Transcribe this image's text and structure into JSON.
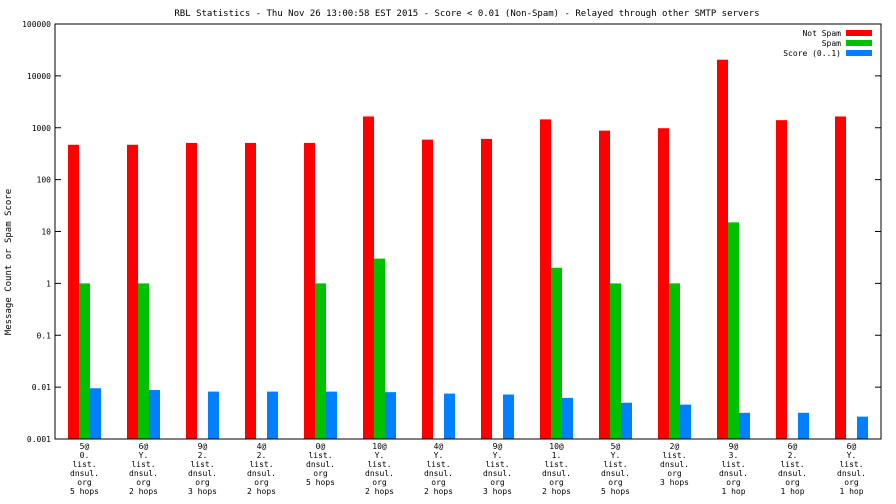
{
  "chart_data": {
    "type": "bar",
    "title": "RBL Statistics - Thu Nov 26 13:00:58 EST 2015 - Score < 0.01 (Non-Spam) - Relayed through other SMTP servers",
    "xlabel": "",
    "ylabel": "Message Count or Spam Score",
    "yscale": "log",
    "ylim": [
      0.001,
      100000
    ],
    "yticks": [
      "0.001",
      "0.01",
      "0.1",
      "1",
      "10",
      "100",
      "1000",
      "10000",
      "100000"
    ],
    "legend_position": "top-right",
    "categories": [
      [
        "5@",
        "0.",
        "list.",
        "dnsul.",
        "org",
        "5 hops"
      ],
      [
        "6@",
        "Y.",
        "list.",
        "dnsul.",
        "org",
        "2 hops"
      ],
      [
        "9@",
        "2.",
        "list.",
        "dnsul.",
        "org",
        "3 hops"
      ],
      [
        "4@",
        "2.",
        "list.",
        "dnsul.",
        "org",
        "2 hops"
      ],
      [
        "0@",
        "list.",
        "dnsul.",
        "org",
        "5 hops"
      ],
      [
        "10@",
        "Y.",
        "list.",
        "dnsul.",
        "org",
        "2 hops"
      ],
      [
        "4@",
        "Y.",
        "list.",
        "dnsul.",
        "org",
        "2 hops"
      ],
      [
        "9@",
        "Y.",
        "list.",
        "dnsul.",
        "org",
        "3 hops"
      ],
      [
        "10@",
        "1.",
        "list.",
        "dnsul.",
        "org",
        "2 hops"
      ],
      [
        "5@",
        "Y.",
        "list.",
        "dnsul.",
        "org",
        "5 hops"
      ],
      [
        "2@",
        "list.",
        "dnsul.",
        "org",
        "3 hops"
      ],
      [
        "9@",
        "3.",
        "list.",
        "dnsul.",
        "org",
        "1 hop"
      ],
      [
        "6@",
        "2.",
        "list.",
        "dnsul.",
        "org",
        "1 hop"
      ],
      [
        "6@",
        "Y.",
        "list.",
        "dnsul.",
        "org",
        "1 hop"
      ]
    ],
    "series": [
      {
        "name": "Not Spam",
        "color": "#ff0000",
        "values": [
          470,
          470,
          510,
          510,
          510,
          1650,
          590,
          610,
          1450,
          880,
          980,
          20500,
          1400,
          1650
        ]
      },
      {
        "name": "Spam",
        "color": "#00c000",
        "values": [
          1,
          1,
          null,
          null,
          1,
          3,
          null,
          null,
          2,
          1,
          1,
          15,
          null,
          null
        ]
      },
      {
        "name": "Score (0..1)",
        "color": "#0080ff",
        "values": [
          0.0095,
          0.0088,
          0.0082,
          0.0082,
          0.0082,
          0.008,
          0.0075,
          0.0072,
          0.0062,
          0.005,
          0.0046,
          0.0032,
          0.0032,
          0.0027
        ]
      }
    ]
  }
}
